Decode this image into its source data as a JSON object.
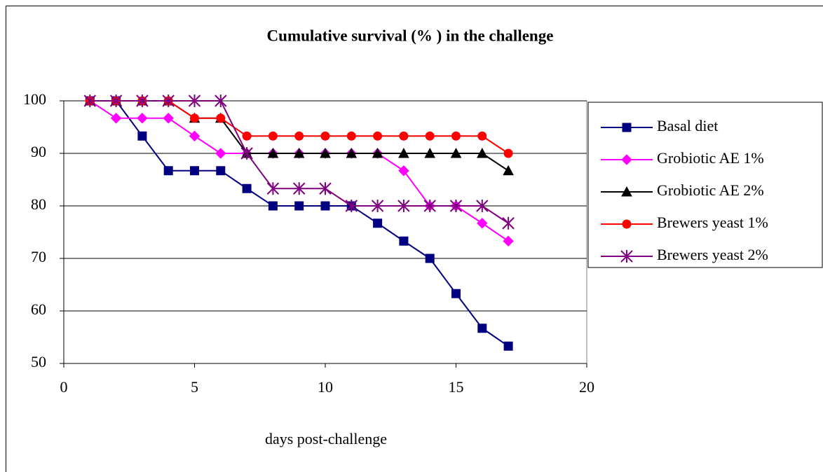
{
  "chart_data": {
    "type": "line",
    "title": "Cumulative survival (% ) in the challenge",
    "x_label": "days post-challenge",
    "x": [
      1,
      2,
      3,
      4,
      5,
      6,
      7,
      8,
      9,
      10,
      11,
      12,
      13,
      14,
      15,
      16,
      17
    ],
    "series": [
      {
        "name": "Basal diet",
        "color": "#000080",
        "marker": "square",
        "values": [
          100,
          100,
          93.3,
          86.7,
          86.7,
          86.7,
          83.3,
          80,
          80,
          80,
          80,
          76.7,
          73.3,
          70,
          63.3,
          56.7,
          53.3
        ]
      },
      {
        "name": "Grobiotic AE 1%",
        "color": "#ff00ff",
        "marker": "diamond",
        "values": [
          100,
          96.7,
          96.7,
          96.7,
          93.3,
          90,
          90,
          90,
          90,
          90,
          90,
          90,
          86.7,
          80,
          80,
          76.7,
          73.3
        ]
      },
      {
        "name": "Grobiotic AE 2%",
        "color": "#000000",
        "marker": "triangle",
        "values": [
          100,
          100,
          100,
          100,
          96.7,
          96.7,
          90,
          90,
          90,
          90,
          90,
          90,
          90,
          90,
          90,
          90,
          86.7
        ]
      },
      {
        "name": "Brewers yeast 1%",
        "color": "#ff0000",
        "marker": "circle",
        "values": [
          100,
          100,
          100,
          100,
          96.7,
          96.7,
          93.3,
          93.3,
          93.3,
          93.3,
          93.3,
          93.3,
          93.3,
          93.3,
          93.3,
          93.3,
          90
        ]
      },
      {
        "name": "Brewers yeast 2%",
        "color": "#800080",
        "marker": "star",
        "values": [
          100,
          100,
          100,
          100,
          100,
          100,
          90,
          83.3,
          83.3,
          83.3,
          80,
          80,
          80,
          80,
          80,
          80,
          76.7
        ]
      }
    ],
    "xlim": [
      0,
      20
    ],
    "xticks": [
      0,
      5,
      10,
      15,
      20
    ],
    "ylim": [
      50,
      100
    ],
    "yticks": [
      50,
      60,
      70,
      80,
      90,
      100
    ],
    "grid": true,
    "legend": "right"
  }
}
